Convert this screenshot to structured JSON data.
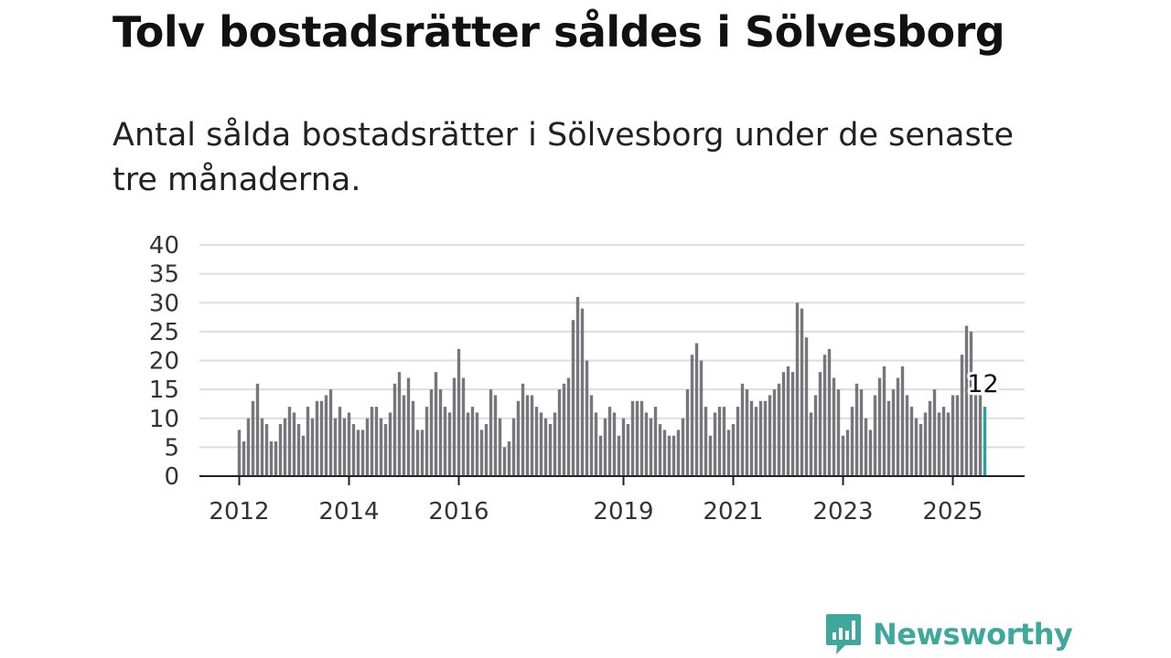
{
  "title": "Tolv bostadsrätter såldes i Sölvesborg",
  "subtitle": "Antal sålda bostadsrätter i Sölvesborg under de senaste tre månaderna.",
  "brand": {
    "name": "Newsworthy",
    "color": "#3fa89d"
  },
  "colors": {
    "bar": "#77767c",
    "highlight": "#26a69a",
    "grid": "#dddddd",
    "axis": "#222222"
  },
  "chart_data": {
    "type": "bar",
    "title": "Tolv bostadsrätter såldes i Sölvesborg",
    "xlabel": "",
    "ylabel": "",
    "ylim": [
      0,
      40
    ],
    "yticks": [
      "0",
      "5",
      "10",
      "15",
      "20",
      "25",
      "30",
      "35",
      "40"
    ],
    "xticks": [
      {
        "label": "2012",
        "index": 0
      },
      {
        "label": "2014",
        "index": 24
      },
      {
        "label": "2016",
        "index": 48
      },
      {
        "label": "2019",
        "index": 84
      },
      {
        "label": "2021",
        "index": 108
      },
      {
        "label": "2023",
        "index": 132
      },
      {
        "label": "2025",
        "index": 156
      }
    ],
    "grid": true,
    "start_month": "2012-01",
    "values": [
      8,
      6,
      10,
      13,
      16,
      10,
      9,
      6,
      6,
      9,
      10,
      12,
      11,
      9,
      7,
      12,
      10,
      13,
      13,
      14,
      15,
      10,
      12,
      10,
      11,
      9,
      8,
      8,
      10,
      12,
      12,
      10,
      9,
      11,
      16,
      18,
      14,
      17,
      13,
      8,
      8,
      12,
      15,
      18,
      15,
      12,
      11,
      17,
      22,
      17,
      11,
      12,
      11,
      8,
      9,
      15,
      14,
      10,
      5,
      6,
      10,
      13,
      16,
      14,
      14,
      12,
      11,
      10,
      9,
      11,
      15,
      16,
      17,
      27,
      31,
      29,
      20,
      14,
      11,
      7,
      10,
      12,
      11,
      7,
      10,
      9,
      13,
      13,
      13,
      11,
      10,
      12,
      9,
      8,
      7,
      7,
      8,
      10,
      15,
      21,
      23,
      20,
      12,
      7,
      11,
      12,
      12,
      8,
      9,
      12,
      16,
      15,
      13,
      12,
      13,
      13,
      14,
      15,
      16,
      18,
      19,
      18,
      30,
      29,
      24,
      11,
      14,
      18,
      21,
      22,
      17,
      15,
      7,
      8,
      12,
      16,
      15,
      10,
      8,
      14,
      17,
      19,
      13,
      15,
      17,
      19,
      14,
      12,
      10,
      9,
      11,
      13,
      15,
      11,
      12,
      11,
      14,
      14,
      21,
      26,
      25,
      14,
      14,
      12
    ],
    "highlight_index": 163,
    "annotation": {
      "label": "12",
      "index": 163
    }
  }
}
